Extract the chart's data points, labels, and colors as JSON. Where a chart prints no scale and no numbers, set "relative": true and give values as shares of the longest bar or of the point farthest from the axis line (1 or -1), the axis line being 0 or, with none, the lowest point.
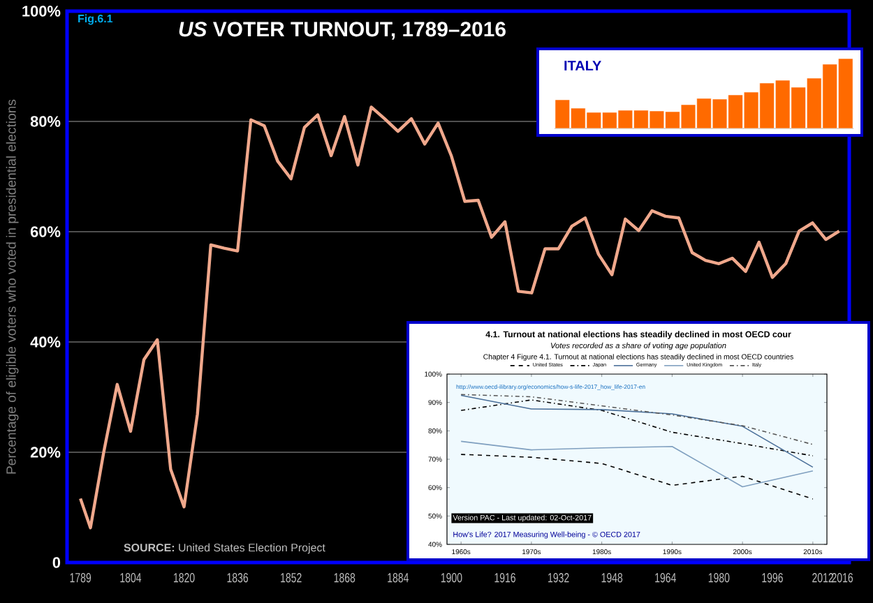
{
  "chart_data": [
    {
      "type": "line",
      "title": "*US* VOTER TURNOUT, 1789–2016",
      "ylabel": "Percentage of eligible voters who voted in presidential elections",
      "annotations": [
        "Fig.6.1",
        "**SOURCE:** United States Election Project"
      ],
      "x": [
        1789,
        1792,
        1796,
        1800,
        1804,
        1808,
        1812,
        1816,
        1820,
        1824,
        1828,
        1832,
        1836,
        1840,
        1844,
        1848,
        1852,
        1856,
        1860,
        1864,
        1868,
        1872,
        1876,
        1880,
        1884,
        1888,
        1892,
        1896,
        1900,
        1904,
        1908,
        1912,
        1916,
        1920,
        1924,
        1928,
        1932,
        1936,
        1940,
        1944,
        1948,
        1952,
        1956,
        1960,
        1964,
        1968,
        1972,
        1976,
        1980,
        1984,
        1988,
        1992,
        1996,
        2000,
        2004,
        2008,
        2012,
        2016
      ],
      "values": [
        11.6,
        6.3,
        20.1,
        32.3,
        23.8,
        36.8,
        40.4,
        16.9,
        10.1,
        26.9,
        57.6,
        57.0,
        56.5,
        80.3,
        79.2,
        72.8,
        69.6,
        78.9,
        81.2,
        73.8,
        80.9,
        72.1,
        82.6,
        80.5,
        78.2,
        80.5,
        75.9,
        79.7,
        73.7,
        65.5,
        65.7,
        59.0,
        61.8,
        49.2,
        48.9,
        56.9,
        56.9,
        61.0,
        62.5,
        55.9,
        52.2,
        62.3,
        60.2,
        63.8,
        62.8,
        62.5,
        56.2,
        54.8,
        54.2,
        55.2,
        52.8,
        58.1,
        51.7,
        54.2,
        60.1,
        61.6,
        58.6,
        60.1
      ],
      "color": "#f0a88c",
      "xlim": [
        1785,
        2019
      ],
      "xticks": [
        1789,
        1804,
        1820,
        1836,
        1852,
        1868,
        1884,
        1900,
        1916,
        1932,
        1948,
        1964,
        1980,
        1996,
        2012,
        2016
      ],
      "ylim": [
        0,
        100
      ],
      "yticks": [
        0,
        {
          "value": 20,
          "label": "20%"
        },
        {
          "value": 40,
          "label": "40%"
        },
        {
          "value": 60,
          "label": "60%"
        },
        {
          "value": 80,
          "label": "80%"
        },
        {
          "value": 100,
          "label": "100%"
        }
      ],
      "grid": "y"
    },
    {
      "type": "bar",
      "title": "ITALY",
      "relative": true,
      "color": "#ff6a00",
      "categories": [
        null,
        null,
        null,
        null,
        null,
        null,
        null,
        null,
        null,
        null,
        null,
        null,
        null,
        null,
        null,
        null,
        null,
        null,
        null
      ],
      "values": [
        0.41,
        0.29,
        0.23,
        0.23,
        0.26,
        0.26,
        0.25,
        0.24,
        0.34,
        0.43,
        0.42,
        0.48,
        0.52,
        0.65,
        0.69,
        0.59,
        0.72,
        0.92,
        1
      ]
    },
    {
      "type": "line",
      "title": "4.1. Turnout at national elections has steadily declined in most OECD cour",
      "subtitle": "Votes recorded as a share of voting age population",
      "annotations": [
        "Chapter 4 Figure 4.1. Turnout at national elections has steadily declined in most OECD countries",
        "http://www.oecd-ilibrary.org/economics/how-s-life-2017_how_life-2017-en",
        "Version PAC - Last updated: 02-Oct-2017",
        "How's Life? 2017 Measuring Well-being - © OECD 2017"
      ],
      "categories": [
        "1960s",
        "1970s",
        "1980s",
        "1990s",
        "2000s",
        "2010s"
      ],
      "ylim": [
        40,
        100
      ],
      "yticks": [
        {
          "value": 40,
          "label": "40%"
        },
        {
          "value": 50,
          "label": "50%"
        },
        {
          "value": 60,
          "label": "60%"
        },
        {
          "value": 70,
          "label": "70%"
        },
        {
          "value": 80,
          "label": "80%"
        },
        {
          "value": 90,
          "label": "90%"
        },
        {
          "value": 100,
          "label": "100%"
        }
      ],
      "legend": "top",
      "series": [
        {
          "name": "United States",
          "color": "#000000",
          "line_style": "dashed",
          "values": [
            71.7,
            70.7,
            68.5,
            60.8,
            64,
            56
          ]
        },
        {
          "name": "Japan",
          "color": "#000000",
          "line_style": "dashdot",
          "values": [
            87.2,
            90.9,
            87.2,
            79.5,
            75.5,
            71.2
          ]
        },
        {
          "name": "Germany",
          "color": "#4a6f99",
          "line_style": "solid",
          "values": [
            92.5,
            87.7,
            87.5,
            86,
            81.6,
            67.2
          ]
        },
        {
          "name": "United Kingdom",
          "color": "#7f9fbf",
          "line_style": "solid",
          "values": [
            76.3,
            73.3,
            74,
            74.5,
            60.3,
            65.9
          ]
        },
        {
          "name": "Italy",
          "color": "#555555",
          "line_style": "dashdot",
          "values": [
            92.8,
            92,
            88.8,
            85.6,
            81.8,
            75.2
          ]
        }
      ]
    }
  ]
}
